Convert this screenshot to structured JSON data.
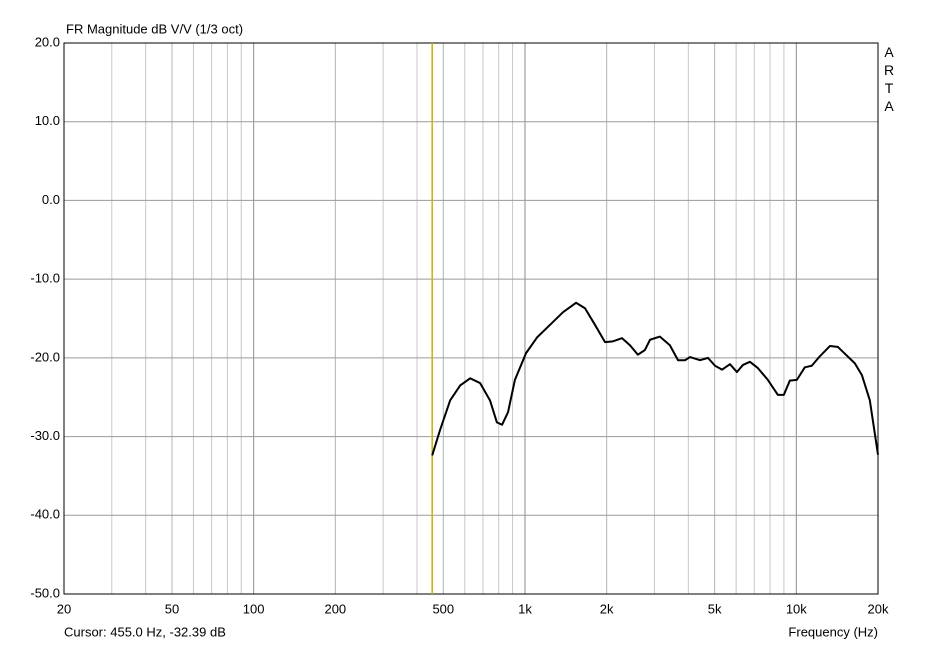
{
  "chart_data": {
    "type": "line",
    "title": "FR Magnitude dB V/V (1/3 oct)",
    "brand": "ARTA",
    "x_label": "Frequency (Hz)",
    "cursor_label": "Cursor: 455.0 Hz, -32.39 dB",
    "cursor_x": 455,
    "cursor_color": "#c8b400",
    "log_x": true,
    "grid": true,
    "xlim": [
      20,
      20000
    ],
    "ylim": [
      -50,
      20
    ],
    "xticks": [
      20,
      50,
      100,
      200,
      500,
      {
        "value": 1000,
        "label": "1k"
      },
      {
        "value": 2000,
        "label": "2k"
      },
      {
        "value": 5000,
        "label": "5k"
      },
      {
        "value": 10000,
        "label": "10k"
      },
      {
        "value": 20000,
        "label": "20k"
      }
    ],
    "x_minor_ticks": [
      30,
      40,
      60,
      70,
      80,
      90,
      300,
      400,
      600,
      700,
      800,
      900,
      3000,
      4000,
      6000,
      7000,
      8000,
      9000
    ],
    "yticks": [
      {
        "value": 20,
        "label": "20.0"
      },
      {
        "value": 10,
        "label": "10.0"
      },
      {
        "value": 0,
        "label": "0.0"
      },
      {
        "value": -10,
        "label": "-10.0"
      },
      {
        "value": -20,
        "label": "-20.0"
      },
      {
        "value": -30,
        "label": "-30.0"
      },
      {
        "value": -40,
        "label": "-40.0"
      },
      {
        "value": -50,
        "label": "-50.0"
      }
    ],
    "series": [
      {
        "color": "#000000",
        "x": [
          455,
          486,
          530,
          577,
          628,
          683,
          743,
          788,
          823,
          866,
          918,
          1009,
          1108,
          1237,
          1381,
          1542,
          1664,
          1811,
          1972,
          2110,
          2277,
          2437,
          2607,
          2767,
          2890,
          3142,
          3420,
          3665,
          3888,
          4057,
          4417,
          4725,
          5016,
          5323,
          5694,
          6042,
          6357,
          6746,
          7218,
          7853,
          8546,
          8993,
          9461,
          10046,
          10749,
          11401,
          12210,
          13293,
          14211,
          15229,
          16436,
          17449,
          18660,
          20000
        ],
        "values": [
          -32.4,
          -29.2,
          -25.4,
          -23.5,
          -22.6,
          -23.2,
          -25.4,
          -28.2,
          -28.5,
          -26.9,
          -22.8,
          -19.4,
          -17.4,
          -15.8,
          -14.2,
          -13.0,
          -13.7,
          -15.8,
          -18.0,
          -17.9,
          -17.5,
          -18.4,
          -19.6,
          -19.0,
          -17.7,
          -17.3,
          -18.4,
          -20.3,
          -20.3,
          -19.9,
          -20.3,
          -20.0,
          -21.0,
          -21.5,
          -20.8,
          -21.8,
          -20.9,
          -20.5,
          -21.3,
          -22.8,
          -24.7,
          -24.7,
          -22.9,
          -22.8,
          -21.2,
          -21.0,
          -19.8,
          -18.5,
          -18.6,
          -19.6,
          -20.7,
          -22.2,
          -25.4,
          -32.3
        ]
      }
    ]
  }
}
